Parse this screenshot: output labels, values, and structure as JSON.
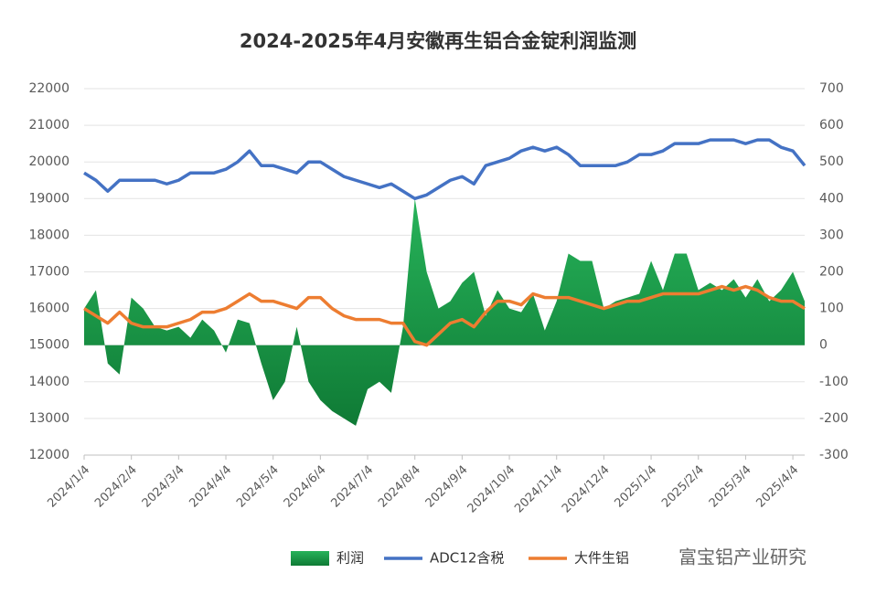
{
  "chart_data": {
    "type": "combo",
    "title": "2024-2025年4月安徽再生铝合金锭利润监测",
    "categories": [
      "2024/1/4",
      null,
      null,
      null,
      "2024/2/4",
      null,
      null,
      null,
      "2024/3/4",
      null,
      null,
      null,
      "2024/4/4",
      null,
      null,
      null,
      "2024/5/4",
      null,
      null,
      null,
      "2024/6/4",
      null,
      null,
      null,
      "2024/7/4",
      null,
      null,
      null,
      "2024/8/4",
      null,
      null,
      null,
      "2024/9/4",
      null,
      null,
      null,
      "2024/10/4",
      null,
      null,
      null,
      "2024/11/4",
      null,
      null,
      null,
      "2024/12/4",
      null,
      null,
      null,
      "2025/1/4",
      null,
      null,
      null,
      "2025/2/4",
      null,
      null,
      null,
      "2025/3/4",
      null,
      null,
      null,
      "2025/4/4",
      null
    ],
    "series": [
      {
        "name": "利润",
        "type": "area",
        "axis": "y2",
        "color": "#1aa14a",
        "values": [
          100,
          150,
          -50,
          -80,
          130,
          100,
          50,
          40,
          50,
          20,
          70,
          40,
          -20,
          70,
          60,
          -50,
          -150,
          -100,
          50,
          -100,
          -150,
          -180,
          -200,
          -220,
          -120,
          -100,
          -130,
          50,
          400,
          200,
          100,
          120,
          170,
          200,
          80,
          150,
          100,
          90,
          140,
          40,
          120,
          250,
          230,
          230,
          100,
          120,
          130,
          140,
          230,
          150,
          250,
          250,
          150,
          170,
          150,
          180,
          130,
          180,
          120,
          150,
          200,
          120
        ]
      },
      {
        "name": "ADC12含税",
        "type": "line",
        "color": "#4472c4",
        "values": [
          19700,
          19500,
          19200,
          19500,
          19500,
          19500,
          19500,
          19400,
          19500,
          19700,
          19700,
          19700,
          19800,
          20000,
          20300,
          19900,
          19900,
          19800,
          19700,
          20000,
          20000,
          19800,
          19600,
          19500,
          19400,
          19300,
          19400,
          19200,
          19000,
          19100,
          19300,
          19500,
          19600,
          19400,
          19900,
          20000,
          20100,
          20300,
          20400,
          20300,
          20400,
          20200,
          19900,
          19900,
          19900,
          19900,
          20000,
          20200,
          20200,
          20300,
          20500,
          20500,
          20500,
          20600,
          20600,
          20600,
          20500,
          20600,
          20600,
          20400,
          20300,
          19900
        ]
      },
      {
        "name": "大件生铝",
        "type": "line",
        "color": "#ed7d31",
        "values": [
          16000,
          15800,
          15600,
          15900,
          15600,
          15500,
          15500,
          15500,
          15600,
          15700,
          15900,
          15900,
          16000,
          16200,
          16400,
          16200,
          16200,
          16100,
          16000,
          16300,
          16300,
          16000,
          15800,
          15700,
          15700,
          15700,
          15600,
          15600,
          15100,
          15000,
          15300,
          15600,
          15700,
          15500,
          15900,
          16200,
          16200,
          16100,
          16400,
          16300,
          16300,
          16300,
          16200,
          16100,
          16000,
          16100,
          16200,
          16200,
          16300,
          16400,
          16400,
          16400,
          16400,
          16500,
          16600,
          16500,
          16600,
          16500,
          16300,
          16200,
          16200,
          16000
        ]
      }
    ],
    "ylim": [
      12000,
      22000
    ],
    "yticks": [
      12000,
      13000,
      14000,
      15000,
      16000,
      17000,
      18000,
      19000,
      20000,
      21000,
      22000
    ],
    "y2lim": [
      -300,
      700
    ],
    "y2ticks": [
      -300,
      -200,
      -100,
      0,
      100,
      200,
      300,
      400,
      500,
      600,
      700
    ],
    "grid": true,
    "legend": "bottom",
    "watermark": "富宝铝产业研究"
  }
}
